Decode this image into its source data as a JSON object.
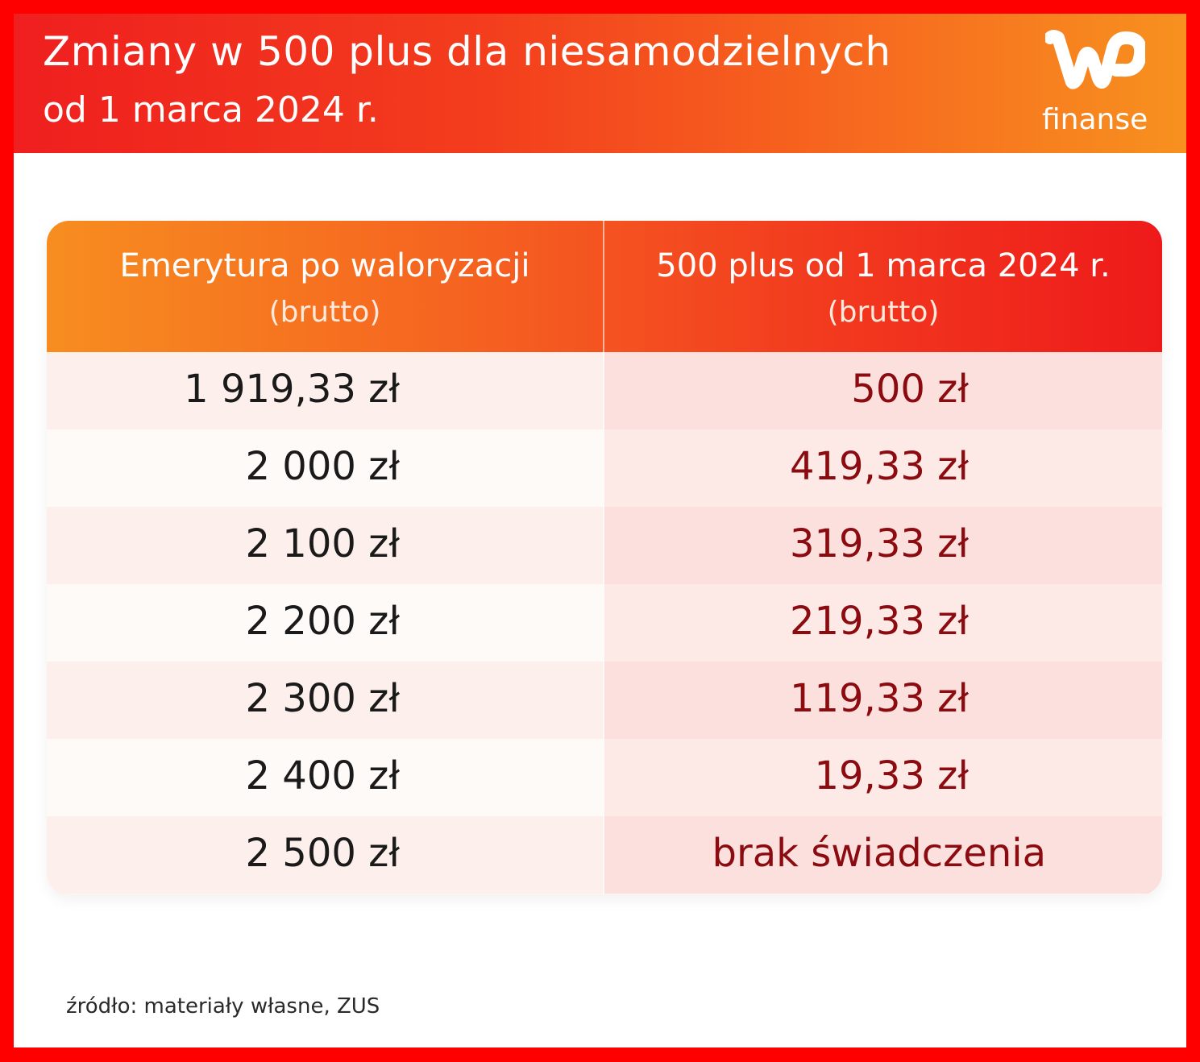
{
  "header": {
    "title": "Zmiany w 500 plus dla niesamodzielnych",
    "subtitle": "od 1 marca 2024 r.",
    "logo_text": "finanse",
    "logo_mark": "WP",
    "gradient_colors": [
      "#ef1f1f",
      "#f7911f"
    ]
  },
  "table": {
    "columns": [
      {
        "label": "Emerytura po waloryzacji",
        "sublabel": "(brutto)"
      },
      {
        "label": "500 plus od 1 marca 2024 r.",
        "sublabel": "(brutto)"
      }
    ],
    "rows": [
      {
        "pension": "1 919,33 zł",
        "benefit": "500 zł"
      },
      {
        "pension": "2 000 zł",
        "benefit": "419,33 zł"
      },
      {
        "pension": "2 100 zł",
        "benefit": "319,33 zł"
      },
      {
        "pension": "2 200 zł",
        "benefit": "219,33 zł"
      },
      {
        "pension": "2 300 zł",
        "benefit": "119,33 zł"
      },
      {
        "pension": "2 400 zł",
        "benefit": "19,33 zł"
      },
      {
        "pension": "2 500 zł",
        "benefit": "brak świadczenia"
      }
    ],
    "benefit_color": "#8c0b10"
  },
  "footer": {
    "source": "źródło: materiały własne, ZUS"
  }
}
